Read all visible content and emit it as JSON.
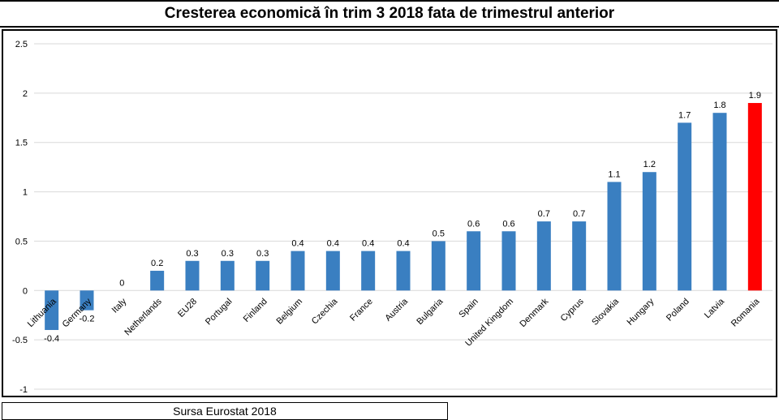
{
  "chart_data": {
    "type": "bar",
    "title": "Cresterea economică în trim 3 2018 fata de trimestrul anterior",
    "categories": [
      "Lithuania",
      "Germany",
      "Italy",
      "Netherlands",
      "EU28",
      "Portugal",
      "Finland",
      "Belgium",
      "Czechia",
      "France",
      "Austria",
      "Bulgaria",
      "Spain",
      "United Kingdom",
      "Denmark",
      "Cyprus",
      "Slovakia",
      "Hungary",
      "Poland",
      "Latvia",
      "Romania"
    ],
    "values": [
      -0.4,
      -0.2,
      0,
      0.2,
      0.3,
      0.3,
      0.3,
      0.4,
      0.4,
      0.4,
      0.4,
      0.5,
      0.6,
      0.6,
      0.7,
      0.7,
      1.1,
      1.2,
      1.7,
      1.8,
      1.9
    ],
    "data_labels": [
      "-0.4",
      "-0.2",
      "0",
      "0.2",
      "0.3",
      "0.3",
      "0.3",
      "0.4",
      "0.4",
      "0.4",
      "0.4",
      "0.5",
      "0.6",
      "0.6",
      "0.7",
      "0.7",
      "1.1",
      "1.2",
      "1.7",
      "1.8",
      "1.9"
    ],
    "ylim": [
      -1,
      2.5
    ],
    "yticks": [
      "-1",
      "-0.5",
      "0",
      "0.5",
      "1",
      "1.5",
      "2",
      "2.5"
    ],
    "grid": true,
    "xlabel": "",
    "ylabel": "",
    "colors": {
      "default_bar": "#3a7fc1",
      "highlight_bar": "#ff0000",
      "highlight_category": "Romania",
      "gridline": "#d9d9d9"
    }
  },
  "source_note": "Sursa Eurostat 2018"
}
